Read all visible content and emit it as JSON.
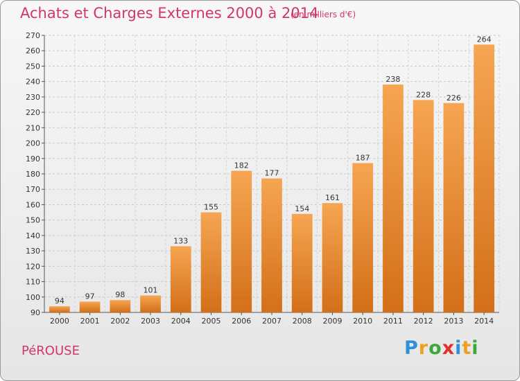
{
  "header": {
    "title": "Achats et Charges Externes 2000 à 2014",
    "unit": "(en milliers d'€)"
  },
  "footer": {
    "commune": "PéROUSE",
    "logo": [
      {
        "ch": "P",
        "color": "#2f8fd8"
      },
      {
        "ch": "r",
        "color": "#f0a020"
      },
      {
        "ch": "o",
        "color": "#3aa83a"
      },
      {
        "ch": "x",
        "color": "#e0302a"
      },
      {
        "ch": "i",
        "color": "#2f8fd8"
      },
      {
        "ch": "t",
        "color": "#f0a020"
      },
      {
        "ch": "i",
        "color": "#3aa83a"
      }
    ]
  },
  "chart_data": {
    "type": "bar",
    "title": "Achats et Charges Externes 2000 à 2014",
    "subtitle": "(en milliers d'€)",
    "categories": [
      "2000",
      "2001",
      "2002",
      "2003",
      "2004",
      "2005",
      "2006",
      "2007",
      "2008",
      "2009",
      "2010",
      "2011",
      "2012",
      "2013",
      "2014"
    ],
    "values": [
      94,
      97,
      98,
      101,
      133,
      155,
      182,
      177,
      154,
      161,
      187,
      238,
      228,
      226,
      264
    ],
    "ylim": [
      90,
      270
    ],
    "yticks": [
      90,
      100,
      110,
      120,
      130,
      140,
      150,
      160,
      170,
      180,
      190,
      200,
      210,
      220,
      230,
      240,
      250,
      260,
      270
    ],
    "grid": true,
    "bar_color": "#f0923a",
    "xlabel": "",
    "ylabel": ""
  }
}
